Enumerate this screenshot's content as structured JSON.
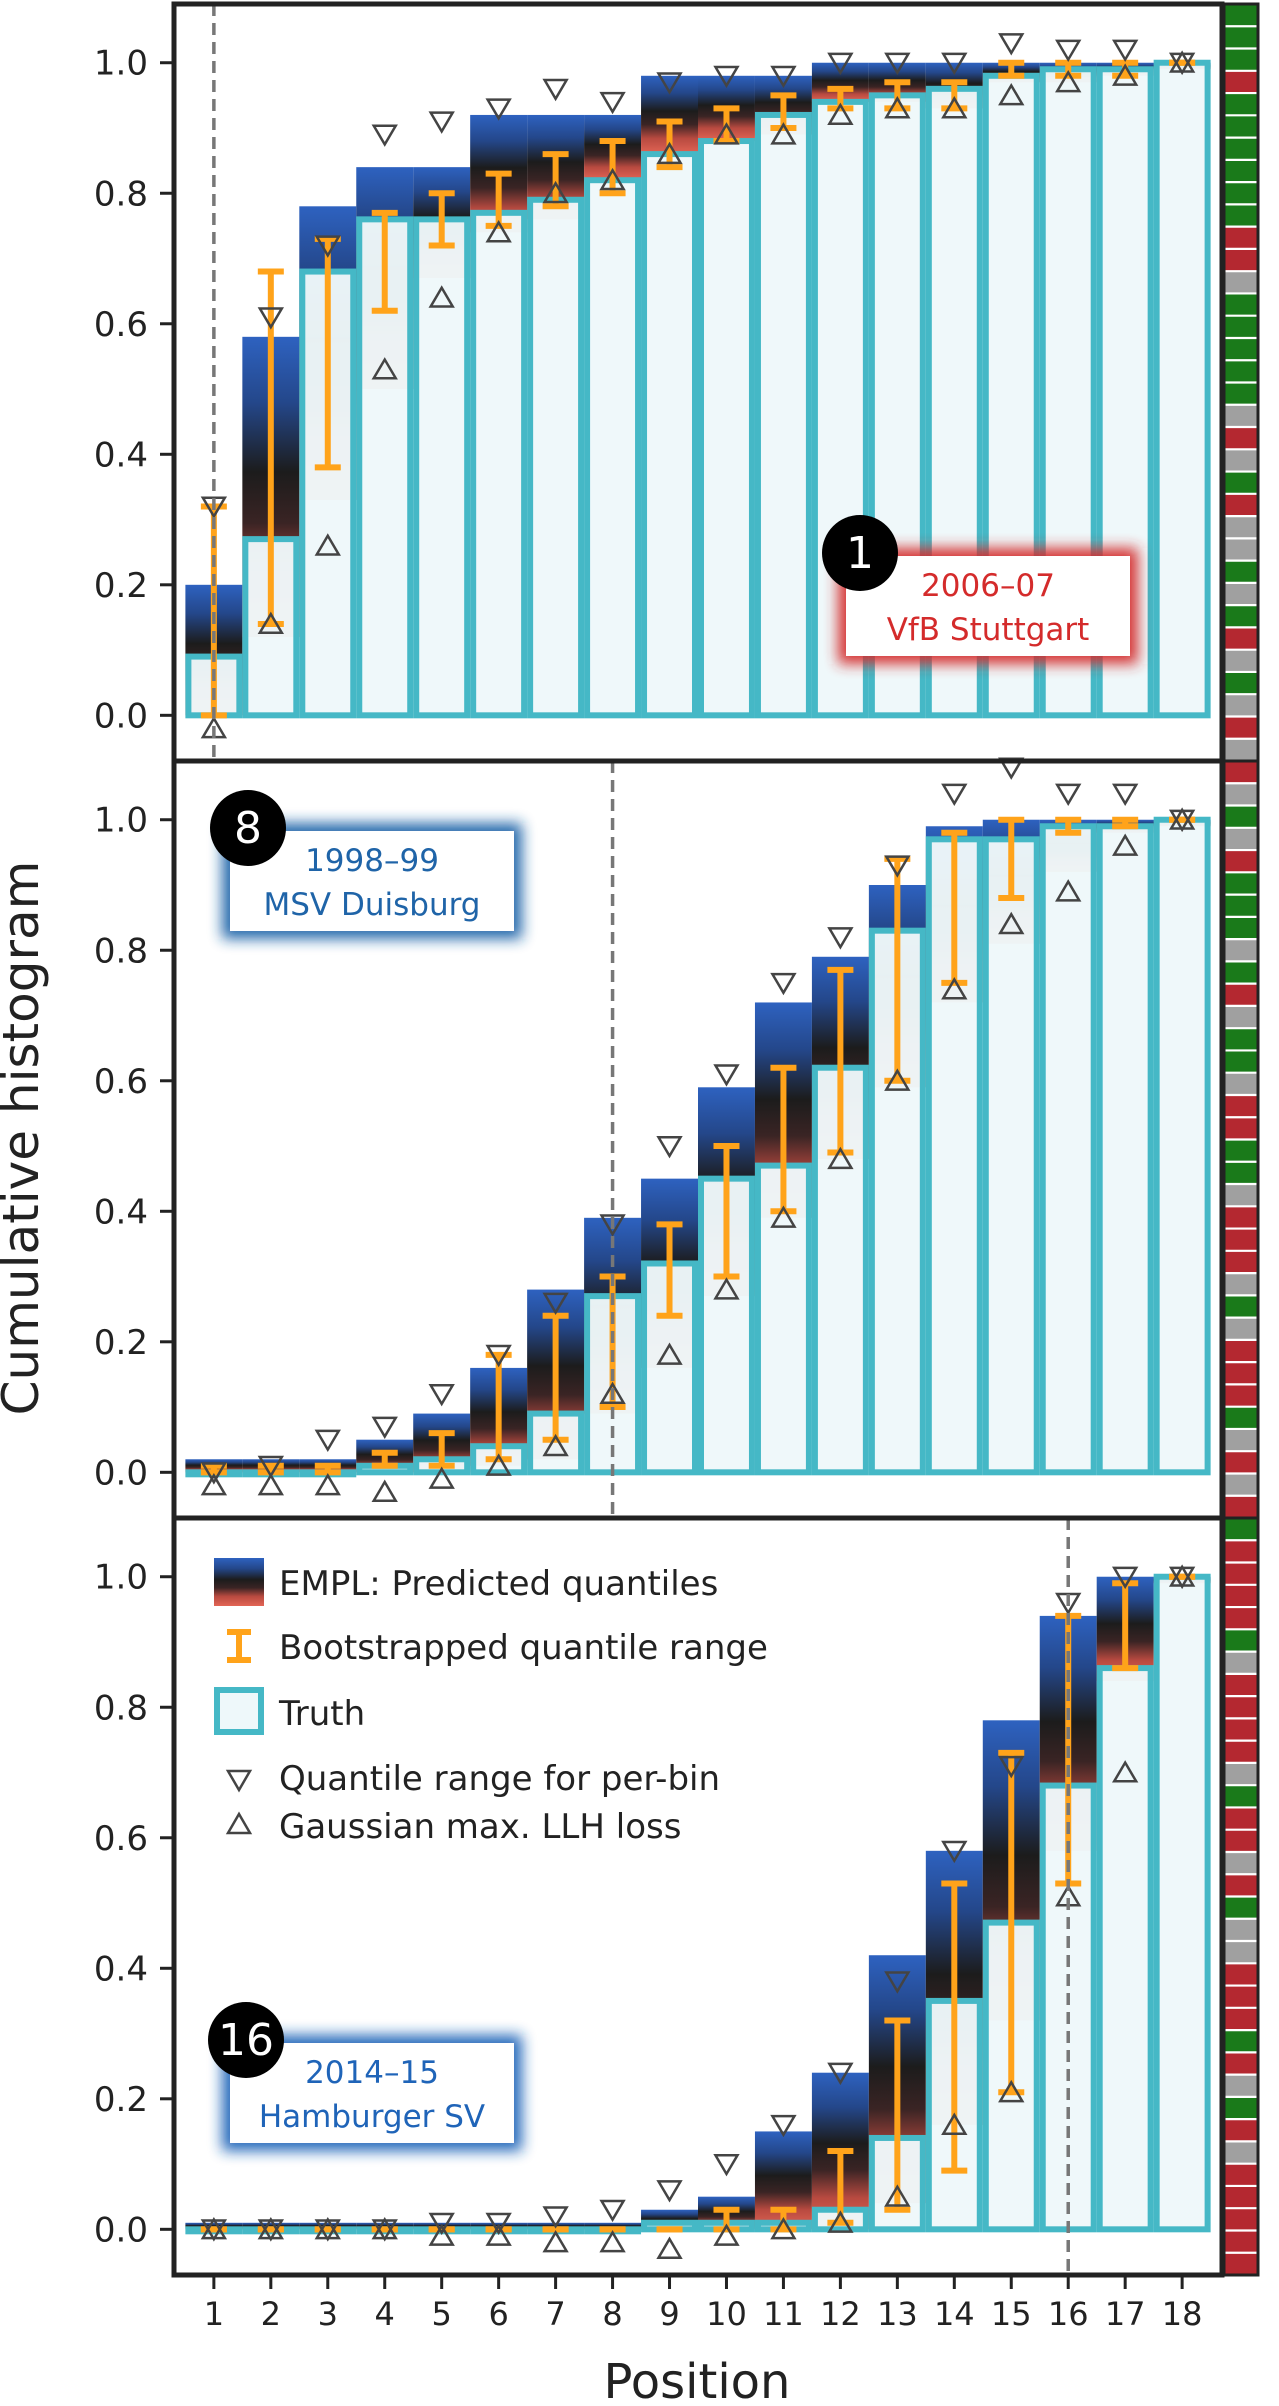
{
  "chart_data": {
    "type": "bar",
    "xlabel": "Position",
    "ylabel": "Cumulative histogram",
    "x_ticks": [
      1,
      2,
      3,
      4,
      5,
      6,
      7,
      8,
      9,
      10,
      11,
      12,
      13,
      14,
      15,
      16,
      17,
      18
    ],
    "y_ticks": [
      "0.0",
      "0.2",
      "0.4",
      "0.6",
      "0.8",
      "1.0"
    ],
    "ylim": [
      -0.07,
      1.09
    ],
    "legend": {
      "placement": "top-left of bottom panel",
      "entries": [
        "EMPL: Predicted quantiles",
        "Bootstrapped quantile range",
        "Truth",
        "Quantile range for per-bin",
        "Gaussian max. LLH loss"
      ]
    },
    "colors": {
      "truth_edge": "#45b8c6",
      "truth_fill": "#eef8fa",
      "quantile_high": "#2e62c0",
      "quantile_mid": "#1c1c1c",
      "quantile_low": "#e36555",
      "bootstrap": "#ffa31a",
      "dashed_line": "#777777",
      "green": "#1a7a1a",
      "red": "#b42830",
      "grey": "#a0a0a0"
    },
    "panels": [
      {
        "rank": "1",
        "season": "2006–07",
        "team": "VfB Stuttgart",
        "label_color": "#d42b2b",
        "label_position": "bottom-right",
        "actual_position": 1,
        "truth": [
          0.09,
          0.27,
          0.68,
          0.76,
          0.76,
          0.77,
          0.79,
          0.82,
          0.86,
          0.88,
          0.92,
          0.94,
          0.95,
          0.96,
          0.98,
          0.99,
          0.99,
          1.0
        ],
        "q_low": [
          0.0,
          0.12,
          0.33,
          0.5,
          0.67,
          0.74,
          0.76,
          0.82,
          0.86,
          0.88,
          0.89,
          0.94,
          0.94,
          0.93,
          0.97,
          0.97,
          0.98,
          0.99
        ],
        "q_high": [
          0.2,
          0.58,
          0.78,
          0.84,
          0.84,
          0.92,
          0.92,
          0.92,
          0.98,
          0.98,
          0.98,
          1.0,
          1.0,
          1.0,
          1.0,
          1.0,
          1.0,
          1.0
        ],
        "boot_low": [
          0.0,
          0.14,
          0.38,
          0.62,
          0.72,
          0.75,
          0.78,
          0.8,
          0.84,
          0.88,
          0.9,
          0.93,
          0.93,
          0.93,
          0.98,
          0.98,
          0.98,
          1.0
        ],
        "boot_high": [
          0.32,
          0.68,
          0.73,
          0.77,
          0.8,
          0.83,
          0.86,
          0.88,
          0.91,
          0.93,
          0.95,
          0.96,
          0.97,
          0.97,
          1.0,
          1.0,
          1.0,
          1.0
        ],
        "tri_down": [
          0.32,
          0.61,
          0.72,
          0.89,
          0.91,
          0.93,
          0.96,
          0.94,
          0.97,
          0.98,
          0.98,
          1.0,
          1.0,
          1.0,
          1.03,
          1.02,
          1.02,
          1.0
        ],
        "tri_up": [
          -0.02,
          0.14,
          0.26,
          0.53,
          0.64,
          0.74,
          0.8,
          0.82,
          0.86,
          0.89,
          0.89,
          0.92,
          0.93,
          0.93,
          0.95,
          0.97,
          0.98,
          1.0
        ],
        "strip": [
          "green",
          "green",
          "green",
          "red",
          "green",
          "green",
          "green",
          "green",
          "green",
          "green",
          "red",
          "red",
          "grey",
          "green",
          "green",
          "green",
          "green",
          "green",
          "grey",
          "red",
          "grey",
          "green",
          "red",
          "grey",
          "grey",
          "green",
          "grey",
          "green",
          "red",
          "grey",
          "green",
          "grey",
          "red",
          "grey"
        ]
      },
      {
        "rank": "8",
        "season": "1998–99",
        "team": "MSV Duisburg",
        "label_color": "#1f64a8",
        "label_position": "top-left",
        "actual_position": 8,
        "truth": [
          0.0,
          0.0,
          0.0,
          0.01,
          0.02,
          0.04,
          0.09,
          0.27,
          0.32,
          0.45,
          0.47,
          0.62,
          0.83,
          0.97,
          0.97,
          0.99,
          0.99,
          1.0
        ],
        "q_low": [
          0.0,
          0.0,
          0.0,
          0.0,
          0.0,
          0.01,
          0.02,
          0.09,
          0.16,
          0.27,
          0.39,
          0.48,
          0.59,
          0.72,
          0.81,
          0.92,
          0.98,
          0.99
        ],
        "q_high": [
          0.02,
          0.02,
          0.02,
          0.05,
          0.09,
          0.16,
          0.28,
          0.39,
          0.45,
          0.59,
          0.72,
          0.79,
          0.9,
          0.99,
          1.0,
          1.0,
          1.0,
          1.0
        ],
        "boot_low": [
          0.0,
          0.0,
          0.0,
          0.01,
          0.01,
          0.02,
          0.05,
          0.1,
          0.24,
          0.3,
          0.4,
          0.49,
          0.6,
          0.75,
          0.88,
          0.98,
          0.99,
          1.0
        ],
        "boot_high": [
          0.01,
          0.01,
          0.01,
          0.03,
          0.06,
          0.18,
          0.24,
          0.3,
          0.38,
          0.5,
          0.62,
          0.77,
          0.94,
          0.98,
          1.0,
          1.0,
          1.0,
          1.0
        ],
        "tri_down": [
          0.0,
          0.01,
          0.05,
          0.07,
          0.12,
          0.18,
          0.26,
          0.38,
          0.5,
          0.61,
          0.75,
          0.82,
          0.93,
          1.04,
          1.08,
          1.04,
          1.04,
          1.0
        ],
        "tri_up": [
          -0.02,
          -0.02,
          -0.02,
          -0.03,
          -0.01,
          0.01,
          0.04,
          0.12,
          0.18,
          0.28,
          0.39,
          0.48,
          0.6,
          0.74,
          0.84,
          0.89,
          0.96,
          1.0
        ],
        "strip": [
          "red",
          "grey",
          "green",
          "grey",
          "red",
          "green",
          "green",
          "green",
          "grey",
          "green",
          "red",
          "grey",
          "green",
          "green",
          "grey",
          "red",
          "red",
          "green",
          "green",
          "grey",
          "red",
          "red",
          "red",
          "grey",
          "green",
          "grey",
          "red",
          "red",
          "red",
          "green",
          "grey",
          "red",
          "grey",
          "red"
        ]
      },
      {
        "rank": "16",
        "season": "2014–15",
        "team": "Hamburger SV",
        "label_color": "#1f64b8",
        "label_position": "bottom-left",
        "actual_position": 16,
        "truth": [
          0.0,
          0.0,
          0.0,
          0.0,
          0.0,
          0.0,
          0.0,
          0.0,
          0.01,
          0.01,
          0.01,
          0.03,
          0.14,
          0.35,
          0.47,
          0.68,
          0.86,
          1.0
        ],
        "q_low": [
          0.0,
          0.0,
          0.0,
          0.0,
          0.0,
          0.0,
          0.0,
          0.0,
          0.0,
          0.0,
          0.0,
          0.0,
          0.04,
          0.16,
          0.32,
          0.58,
          0.84,
          0.99
        ],
        "q_high": [
          0.01,
          0.01,
          0.01,
          0.01,
          0.01,
          0.01,
          0.01,
          0.01,
          0.03,
          0.05,
          0.15,
          0.24,
          0.42,
          0.58,
          0.78,
          0.94,
          1.0,
          1.0
        ],
        "boot_low": [
          0.0,
          0.0,
          0.0,
          0.0,
          0.0,
          0.0,
          0.0,
          0.0,
          0.0,
          0.0,
          0.0,
          0.01,
          0.03,
          0.09,
          0.21,
          0.53,
          0.86,
          1.0
        ],
        "boot_high": [
          0.0,
          0.0,
          0.0,
          0.0,
          0.0,
          0.0,
          0.0,
          0.0,
          0.0,
          0.03,
          0.03,
          0.12,
          0.32,
          0.53,
          0.73,
          0.94,
          0.99,
          1.0
        ],
        "tri_down": [
          0.0,
          0.0,
          0.0,
          0.0,
          0.01,
          0.01,
          0.02,
          0.03,
          0.06,
          0.1,
          0.16,
          0.24,
          0.38,
          0.58,
          0.71,
          0.96,
          1.0,
          1.0
        ],
        "tri_up": [
          0.0,
          0.0,
          0.0,
          0.0,
          -0.01,
          -0.01,
          -0.02,
          -0.02,
          -0.03,
          -0.01,
          0.0,
          0.01,
          0.05,
          0.16,
          0.21,
          0.51,
          0.7,
          1.0
        ],
        "strip": [
          "green",
          "red",
          "red",
          "red",
          "red",
          "green",
          "grey",
          "red",
          "red",
          "red",
          "red",
          "grey",
          "green",
          "red",
          "red",
          "grey",
          "red",
          "green",
          "grey",
          "grey",
          "red",
          "red",
          "red",
          "green",
          "red",
          "grey",
          "green",
          "red",
          "grey",
          "red",
          "red",
          "red",
          "red",
          "red"
        ]
      }
    ]
  }
}
